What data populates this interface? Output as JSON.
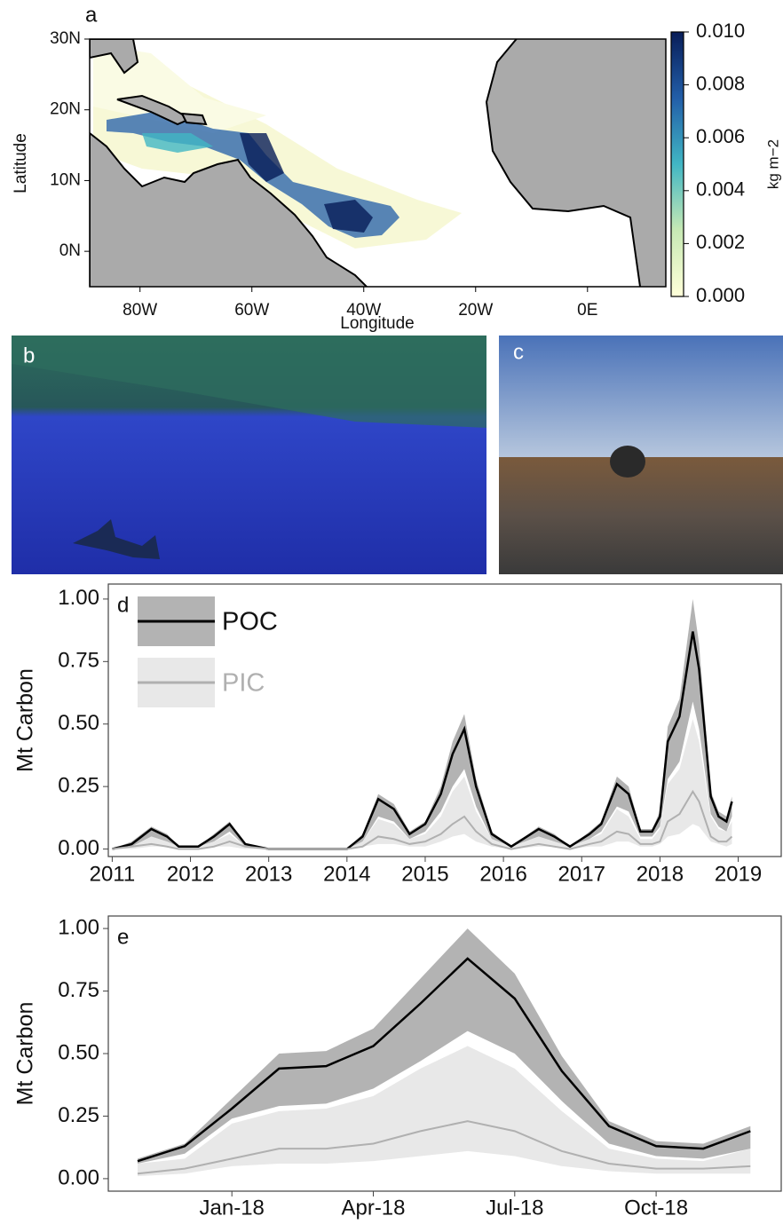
{
  "chart_data": [
    {
      "type": "map",
      "panel_label": "a",
      "xlabel": "Longitude",
      "ylabel": "Latitude",
      "colorbar_label": "kg m−2",
      "xlim": [
        -89,
        14
      ],
      "ylim": [
        -5,
        30
      ],
      "xticks": [
        {
          "value": -80,
          "label": "80W"
        },
        {
          "value": -60,
          "label": "60W"
        },
        {
          "value": -40,
          "label": "40W"
        },
        {
          "value": -20,
          "label": "20W"
        },
        {
          "value": 0,
          "label": "0E"
        }
      ],
      "yticks": [
        {
          "value": 0,
          "label": "0N"
        },
        {
          "value": 10,
          "label": "10N"
        },
        {
          "value": 20,
          "label": "20N"
        },
        {
          "value": 30,
          "label": "30N"
        }
      ],
      "clim": [
        0,
        0.01
      ],
      "cticks": [
        {
          "value": 0,
          "label": "0.000"
        },
        {
          "value": 0.002,
          "label": "0.002"
        },
        {
          "value": 0.004,
          "label": "0.004"
        },
        {
          "value": 0.006,
          "label": "0.006"
        },
        {
          "value": 0.008,
          "label": "0.008"
        },
        {
          "value": 0.01,
          "label": "0.010"
        }
      ],
      "colormap": [
        "#ffffd9",
        "#c7e9b4",
        "#41b6c4",
        "#225ea8",
        "#081d58"
      ]
    },
    {
      "type": "line",
      "panel_label": "d",
      "ylabel": "Mt Carbon",
      "x": [
        2011.0,
        2011.25,
        2011.5,
        2011.7,
        2011.85,
        2012.1,
        2012.3,
        2012.5,
        2012.7,
        2013.0,
        2014.0,
        2014.2,
        2014.4,
        2014.6,
        2014.8,
        2015.0,
        2015.2,
        2015.35,
        2015.5,
        2015.65,
        2015.85,
        2016.1,
        2016.45,
        2016.65,
        2016.85,
        2017.1,
        2017.25,
        2017.45,
        2017.6,
        2017.75,
        2017.9,
        2018.0,
        2018.1,
        2018.25,
        2018.42,
        2018.5,
        2018.65,
        2018.75,
        2018.85,
        2018.92
      ],
      "xlim": [
        2010.95,
        2019.55
      ],
      "xticks": [
        2011,
        2012,
        2013,
        2014,
        2015,
        2016,
        2017,
        2018,
        2019
      ],
      "ylim": [
        -0.03,
        1.06
      ],
      "yticks": [
        {
          "value": 0,
          "label": "0.00"
        },
        {
          "value": 0.25,
          "label": "0.25"
        },
        {
          "value": 0.5,
          "label": "0.50"
        },
        {
          "value": 0.75,
          "label": "0.75"
        },
        {
          "value": 1,
          "label": "1.00"
        }
      ],
      "series": [
        {
          "name": "POC",
          "color": "#000000",
          "band_color": "#b3b3b3",
          "values": [
            0,
            0.02,
            0.08,
            0.05,
            0.01,
            0.01,
            0.05,
            0.1,
            0.02,
            0,
            0,
            0.05,
            0.2,
            0.16,
            0.06,
            0.1,
            0.22,
            0.38,
            0.48,
            0.25,
            0.06,
            0.01,
            0.08,
            0.05,
            0.01,
            0.06,
            0.1,
            0.26,
            0.22,
            0.07,
            0.07,
            0.13,
            0.43,
            0.53,
            0.87,
            0.72,
            0.21,
            0.13,
            0.11,
            0.19
          ],
          "upper": [
            0,
            0.03,
            0.09,
            0.06,
            0.01,
            0.01,
            0.06,
            0.11,
            0.02,
            0,
            0,
            0.06,
            0.22,
            0.18,
            0.07,
            0.11,
            0.25,
            0.43,
            0.54,
            0.28,
            0.07,
            0.01,
            0.09,
            0.06,
            0.01,
            0.07,
            0.11,
            0.29,
            0.25,
            0.08,
            0.08,
            0.15,
            0.49,
            0.6,
            1.0,
            0.82,
            0.23,
            0.15,
            0.13,
            0.21
          ],
          "lower": [
            0,
            0.01,
            0.05,
            0.03,
            0.01,
            0.01,
            0.03,
            0.07,
            0.01,
            0,
            0,
            0.03,
            0.13,
            0.11,
            0.04,
            0.07,
            0.15,
            0.25,
            0.32,
            0.17,
            0.04,
            0.01,
            0.05,
            0.03,
            0.01,
            0.04,
            0.07,
            0.17,
            0.15,
            0.05,
            0.05,
            0.09,
            0.28,
            0.35,
            0.59,
            0.48,
            0.14,
            0.09,
            0.07,
            0.13
          ]
        },
        {
          "name": "PIC",
          "color": "#b0b0b0",
          "band_color": "#e8e8e8",
          "values": [
            0,
            0.01,
            0.02,
            0.01,
            0,
            0,
            0.01,
            0.03,
            0.01,
            0,
            0,
            0.01,
            0.05,
            0.04,
            0.02,
            0.03,
            0.06,
            0.1,
            0.13,
            0.07,
            0.02,
            0,
            0.02,
            0.01,
            0,
            0.02,
            0.03,
            0.07,
            0.06,
            0.02,
            0.02,
            0.03,
            0.11,
            0.14,
            0.23,
            0.19,
            0.05,
            0.03,
            0.03,
            0.05
          ],
          "upper": [
            0,
            0.01,
            0.05,
            0.03,
            0.01,
            0.01,
            0.03,
            0.06,
            0.01,
            0,
            0,
            0.03,
            0.12,
            0.1,
            0.04,
            0.06,
            0.13,
            0.23,
            0.29,
            0.15,
            0.04,
            0.01,
            0.05,
            0.03,
            0.01,
            0.04,
            0.06,
            0.16,
            0.13,
            0.04,
            0.04,
            0.08,
            0.26,
            0.32,
            0.52,
            0.43,
            0.13,
            0.08,
            0.07,
            0.11
          ],
          "lower": [
            0,
            0,
            0.01,
            0.01,
            0,
            0,
            0.01,
            0.01,
            0,
            0,
            0,
            0.01,
            0.02,
            0.02,
            0.01,
            0.01,
            0.03,
            0.05,
            0.06,
            0.03,
            0.01,
            0,
            0.01,
            0.01,
            0,
            0.01,
            0.01,
            0.03,
            0.03,
            0.01,
            0.01,
            0.02,
            0.05,
            0.06,
            0.1,
            0.09,
            0.03,
            0.02,
            0.01,
            0.02
          ]
        }
      ]
    },
    {
      "type": "line",
      "panel_label": "e",
      "ylabel": "Mt Carbon",
      "categories": [
        null,
        null,
        "Jan-18",
        null,
        null,
        "Apr-18",
        null,
        null,
        "Jul-18",
        null,
        null,
        "Oct-18",
        null,
        null
      ],
      "ylim": [
        -0.05,
        1.05
      ],
      "yticks": [
        {
          "value": 0,
          "label": "0.00"
        },
        {
          "value": 0.25,
          "label": "0.25"
        },
        {
          "value": 0.5,
          "label": "0.50"
        },
        {
          "value": 0.75,
          "label": "0.75"
        },
        {
          "value": 1,
          "label": "1.00"
        }
      ],
      "series": [
        {
          "name": "POC",
          "color": "#000000",
          "band_color": "#b3b3b3",
          "values": [
            0.07,
            0.13,
            0.28,
            0.44,
            0.45,
            0.53,
            0.7,
            0.88,
            0.72,
            0.43,
            0.21,
            0.13,
            0.12,
            0.19
          ],
          "upper": [
            0.08,
            0.14,
            0.32,
            0.5,
            0.51,
            0.6,
            0.8,
            1.0,
            0.82,
            0.49,
            0.23,
            0.15,
            0.14,
            0.21
          ],
          "lower": [
            0.06,
            0.1,
            0.24,
            0.29,
            0.3,
            0.36,
            0.47,
            0.59,
            0.5,
            0.31,
            0.14,
            0.09,
            0.08,
            0.12
          ]
        },
        {
          "name": "PIC",
          "color": "#b0b0b0",
          "band_color": "#e8e8e8",
          "values": [
            0.02,
            0.04,
            0.08,
            0.12,
            0.12,
            0.14,
            0.19,
            0.23,
            0.19,
            0.11,
            0.06,
            0.04,
            0.04,
            0.05
          ],
          "upper": [
            0.06,
            0.08,
            0.22,
            0.27,
            0.28,
            0.33,
            0.44,
            0.53,
            0.44,
            0.27,
            0.12,
            0.08,
            0.07,
            0.12
          ],
          "lower": [
            0.01,
            0.02,
            0.05,
            0.06,
            0.06,
            0.07,
            0.09,
            0.11,
            0.09,
            0.05,
            0.03,
            0.02,
            0.02,
            0.02
          ]
        }
      ]
    }
  ],
  "photos": [
    {
      "panel_label": "b"
    },
    {
      "panel_label": "c"
    }
  ]
}
